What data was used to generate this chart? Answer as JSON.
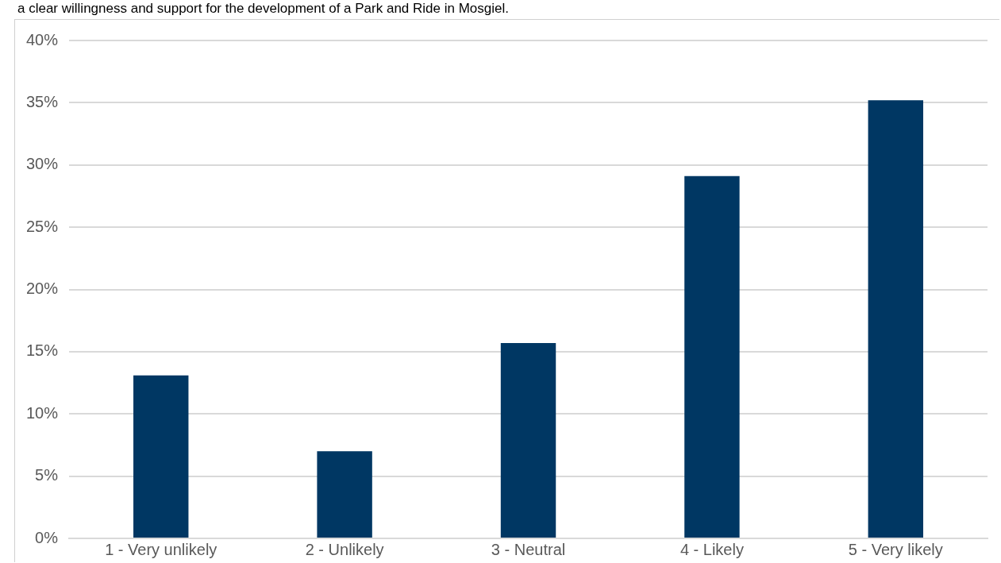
{
  "chart_data": {
    "type": "bar",
    "annotations": [
      "a clear willingness and support for the development of a Park and Ride in Mosgiel."
    ],
    "categories": [
      "1 - Very unlikely",
      "2 - Unlikely",
      "3 - Neutral",
      "4 - Likely",
      "5 - Very likely"
    ],
    "values": [
      13.1,
      7.0,
      15.7,
      29.1,
      35.2
    ],
    "color": "#003763",
    "ylim": [
      0,
      40
    ],
    "yticks": [
      {
        "value": 0,
        "label": "0%"
      },
      {
        "value": 5,
        "label": "5%"
      },
      {
        "value": 10,
        "label": "10%"
      },
      {
        "value": 15,
        "label": "15%"
      },
      {
        "value": 20,
        "label": "20%"
      },
      {
        "value": 25,
        "label": "25%"
      },
      {
        "value": 30,
        "label": "30%"
      },
      {
        "value": 35,
        "label": "35%"
      },
      {
        "value": 40,
        "label": "40%"
      }
    ],
    "grid": "y",
    "legend": false
  }
}
